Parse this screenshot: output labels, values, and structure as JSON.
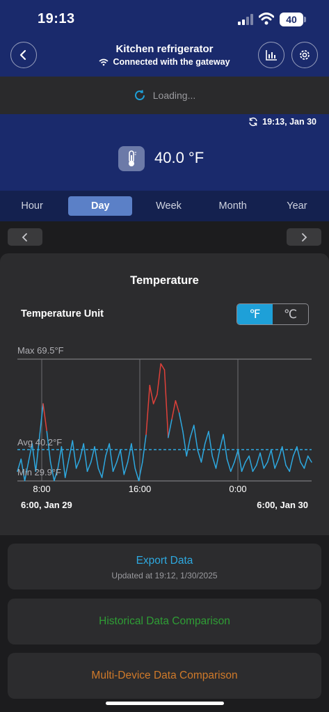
{
  "status_bar": {
    "time": "19:13",
    "battery": "40"
  },
  "header": {
    "title": "Kitchen refrigerator",
    "subtitle": "Connected with the gateway"
  },
  "loading": {
    "text": "Loading..."
  },
  "reading": {
    "sync_time": "19:13,  Jan 30",
    "temperature": "40.0 °F"
  },
  "periods": [
    "Hour",
    "Day",
    "Week",
    "Month",
    "Year"
  ],
  "active_period": "Day",
  "card": {
    "title": "Temperature",
    "unit_label": "Temperature Unit",
    "unit_options": [
      "℉",
      "℃"
    ],
    "active_unit": "℉"
  },
  "chart_data": {
    "type": "line",
    "y_max_label": "Max 69.5°F",
    "y_avg_label": "Avg 40.2°F",
    "y_min_label": "Min 29.9°F",
    "ymax": 69.5,
    "yavg": 40.2,
    "ymin": 29.9,
    "threshold": 50,
    "x_ticks": [
      "8:00",
      "16:00",
      "0:00"
    ],
    "date_start": "6:00,  Jan 29",
    "date_end": "6:00,  Jan 30",
    "x_hours_range": [
      6,
      30
    ],
    "series": [
      {
        "color_below": "#2ea9e0",
        "color_above": "#e0413a",
        "x": [
          6.0,
          6.3,
          6.6,
          6.9,
          7.2,
          7.5,
          7.8,
          8.1,
          8.4,
          8.7,
          9.0,
          9.3,
          9.6,
          9.9,
          10.2,
          10.5,
          10.8,
          11.1,
          11.4,
          11.7,
          12.0,
          12.3,
          12.6,
          12.9,
          13.2,
          13.5,
          13.8,
          14.1,
          14.4,
          14.7,
          15.0,
          15.3,
          15.6,
          15.9,
          16.2,
          16.5,
          16.8,
          17.1,
          17.4,
          17.7,
          18.0,
          18.3,
          18.6,
          18.9,
          19.2,
          19.5,
          19.8,
          20.1,
          20.4,
          20.7,
          21.0,
          21.3,
          21.6,
          21.9,
          22.2,
          22.5,
          22.8,
          23.1,
          23.4,
          23.7,
          24.0,
          24.3,
          24.6,
          24.9,
          25.2,
          25.5,
          25.8,
          26.1,
          26.4,
          26.7,
          27.0,
          27.3,
          27.6,
          27.9,
          28.2,
          28.5,
          28.8,
          29.1,
          29.4,
          29.7,
          30.0
        ],
        "y": [
          33,
          37,
          30,
          36,
          42,
          33,
          44,
          55,
          46,
          36,
          30,
          34,
          41,
          31,
          37,
          43,
          34,
          37,
          42,
          33,
          36,
          41,
          34,
          31,
          38,
          42,
          33,
          36,
          40,
          32,
          36,
          42,
          34,
          30,
          36,
          45,
          61,
          55,
          58,
          68,
          66,
          44,
          50,
          56,
          52,
          46,
          38,
          44,
          48,
          40,
          36,
          42,
          46,
          38,
          34,
          40,
          45,
          37,
          33,
          36,
          40,
          33,
          36,
          38,
          33,
          35,
          39,
          34,
          36,
          40,
          34,
          37,
          41,
          35,
          33,
          38,
          41,
          36,
          34,
          38,
          36
        ]
      }
    ],
    "grid": true,
    "legend": "none"
  },
  "buttons": {
    "export": "Export Data",
    "export_sub": "Updated at 19:12,  1/30/2025",
    "historical": "Historical Data Comparison",
    "multi": "Multi-Device Data Comparison"
  }
}
